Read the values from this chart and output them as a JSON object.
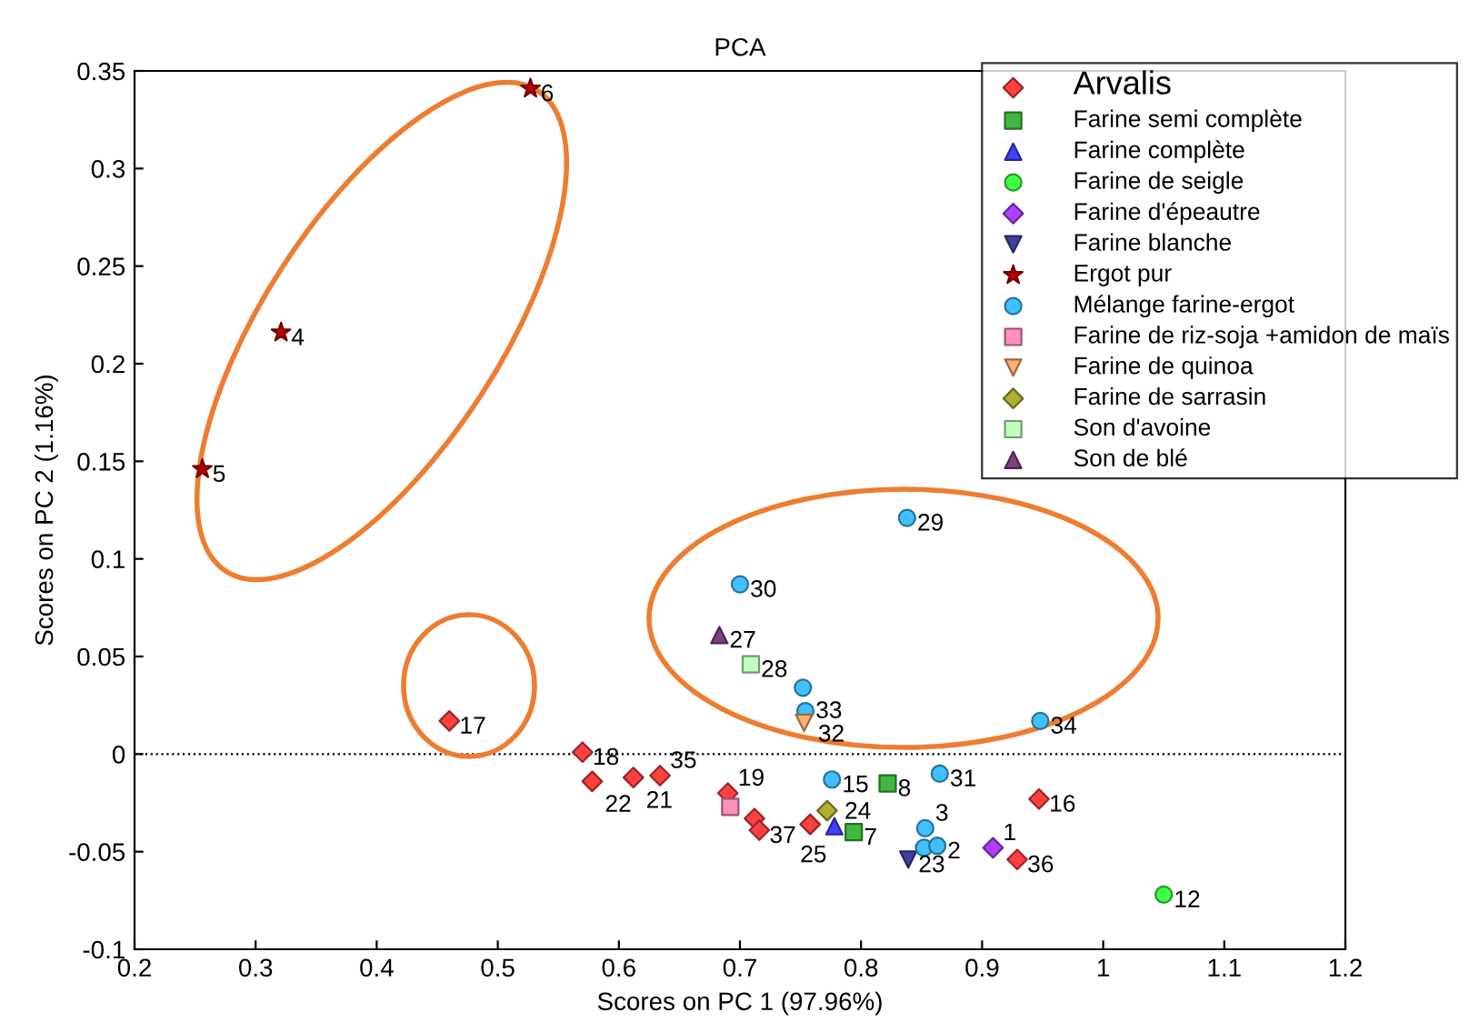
{
  "chart_data": {
    "type": "scatter",
    "title": "PCA",
    "xlabel": "Scores on PC 1 (97.96%)",
    "ylabel": "Scores on PC 2 (1.16%)",
    "xlim": [
      0.2,
      1.2
    ],
    "xticks": [
      0.2,
      0.3,
      0.4,
      0.5,
      0.6,
      0.7,
      0.8,
      0.9,
      1,
      1.1,
      1.2
    ],
    "ylim": [
      -0.1,
      0.35
    ],
    "yticks": [
      -0.1,
      -0.05,
      0,
      0.05,
      0.1,
      0.15,
      0.2,
      0.25,
      0.3,
      0.35
    ],
    "grid": false,
    "legend": "top right",
    "ref_lines": [
      {
        "axis": "y",
        "value": 0,
        "label": null,
        "color": "#000000",
        "line_style": "dotted"
      }
    ],
    "series": [
      {
        "name": "Arvalis",
        "color": "#ff4040",
        "marker": "diamond",
        "x": [
          0.46,
          0.57,
          0.578,
          0.612,
          0.629,
          0.634,
          0.69,
          0.712,
          0.716,
          0.758,
          0.947,
          0.929
        ],
        "values": [
          0.017,
          0.001,
          -0.014,
          -0.012,
          null,
          -0.011,
          -0.02,
          -0.033,
          -0.039,
          -0.036,
          -0.023,
          -0.054
        ]
      },
      {
        "name": "Farine semi complète",
        "color": "#40b840",
        "marker": "square",
        "x": [
          0.822,
          0.794
        ],
        "values": [
          -0.015,
          -0.04
        ]
      },
      {
        "name": "Farine complète",
        "color": "#4040ff",
        "marker": "triangle",
        "x": [
          0.778
        ],
        "values": [
          -0.037
        ]
      },
      {
        "name": "Farine de seigle",
        "color": "#40ff40",
        "marker": "circle",
        "x": [
          1.05
        ],
        "values": [
          -0.072
        ]
      },
      {
        "name": "Farine d'épeautre",
        "color": "#b040ff",
        "marker": "diamond",
        "x": [
          0.909
        ],
        "values": [
          -0.048
        ]
      },
      {
        "name": "Farine blanche",
        "color": "#4040a0",
        "marker": "triangle_down",
        "x": [
          0.839
        ],
        "values": [
          -0.054
        ]
      },
      {
        "name": "Ergot pur",
        "color": "#c00000",
        "marker": "star",
        "x": [
          0.321,
          0.256,
          0.527
        ],
        "values": [
          0.216,
          0.146,
          0.341
        ]
      },
      {
        "name": "Mélange farine-ergot",
        "color": "#40c0ff",
        "marker": "circle",
        "x": [
          0.838,
          0.7,
          0.752,
          0.754,
          0.948,
          0.776,
          0.865,
          0.853,
          0.852,
          0.863
        ],
        "values": [
          0.121,
          0.087,
          0.034,
          0.022,
          0.017,
          -0.013,
          -0.01,
          -0.038,
          -0.048,
          -0.047
        ]
      },
      {
        "name": "Farine de riz-soja +amidon de maïs",
        "color": "#ff90c0",
        "marker": "square",
        "x": [
          0.692
        ],
        "values": [
          -0.027
        ]
      },
      {
        "name": "Farine de quinoa",
        "color": "#ffb070",
        "marker": "triangle_down",
        "x": [
          0.753
        ],
        "values": [
          0.016
        ]
      },
      {
        "name": "Farine de sarrasin",
        "color": "#b0b030",
        "marker": "diamond",
        "x": [
          0.772
        ],
        "values": [
          -0.029
        ]
      },
      {
        "name": "Son d'avoine",
        "color": "#c0ffc0",
        "marker": "square",
        "x": [
          0.709
        ],
        "values": [
          0.046
        ]
      },
      {
        "name": "Son de blé",
        "color": "#804080",
        "marker": "triangle",
        "x": [
          0.683
        ],
        "values": [
          0.061
        ]
      }
    ],
    "annotations": [
      {
        "text": "17",
        "x": 0.46,
        "y": 0.017
      },
      {
        "text": "18",
        "x": 0.57,
        "y": 0.001
      },
      {
        "text": "22",
        "x": 0.578,
        "y": -0.014
      },
      {
        "text": "21",
        "x": 0.612,
        "y": -0.012
      },
      {
        "text": "35",
        "x": 0.634,
        "y": -0.011
      },
      {
        "text": "19",
        "x": 0.69,
        "y": -0.02
      },
      {
        "text": "37",
        "x": 0.716,
        "y": -0.039
      },
      {
        "text": "25",
        "x": 0.758,
        "y": -0.036
      },
      {
        "text": "16",
        "x": 0.947,
        "y": -0.023
      },
      {
        "text": "36",
        "x": 0.929,
        "y": -0.054
      },
      {
        "text": "8",
        "x": 0.822,
        "y": -0.015
      },
      {
        "text": "7",
        "x": 0.794,
        "y": -0.04
      },
      {
        "text": "24",
        "x": 0.778,
        "y": -0.037
      },
      {
        "text": "12",
        "x": 1.05,
        "y": -0.072
      },
      {
        "text": "1",
        "x": 0.909,
        "y": -0.048
      },
      {
        "text": "23",
        "x": 0.839,
        "y": -0.054
      },
      {
        "text": "4",
        "x": 0.321,
        "y": 0.216
      },
      {
        "text": "5",
        "x": 0.256,
        "y": 0.146
      },
      {
        "text": "6",
        "x": 0.527,
        "y": 0.341
      },
      {
        "text": "29",
        "x": 0.838,
        "y": 0.121
      },
      {
        "text": "30",
        "x": 0.7,
        "y": 0.087
      },
      {
        "text": "33",
        "x": 0.752,
        "y": 0.034
      },
      {
        "text": "32",
        "x": 0.754,
        "y": 0.022
      },
      {
        "text": "34",
        "x": 0.948,
        "y": 0.017
      },
      {
        "text": "15",
        "x": 0.776,
        "y": -0.013
      },
      {
        "text": "31",
        "x": 0.865,
        "y": -0.01
      },
      {
        "text": "3",
        "x": 0.853,
        "y": -0.038
      },
      {
        "text": "2",
        "x": 0.863,
        "y": -0.047
      },
      {
        "text": "28",
        "x": 0.709,
        "y": 0.046
      },
      {
        "text": "27",
        "x": 0.683,
        "y": 0.061
      }
    ]
  }
}
